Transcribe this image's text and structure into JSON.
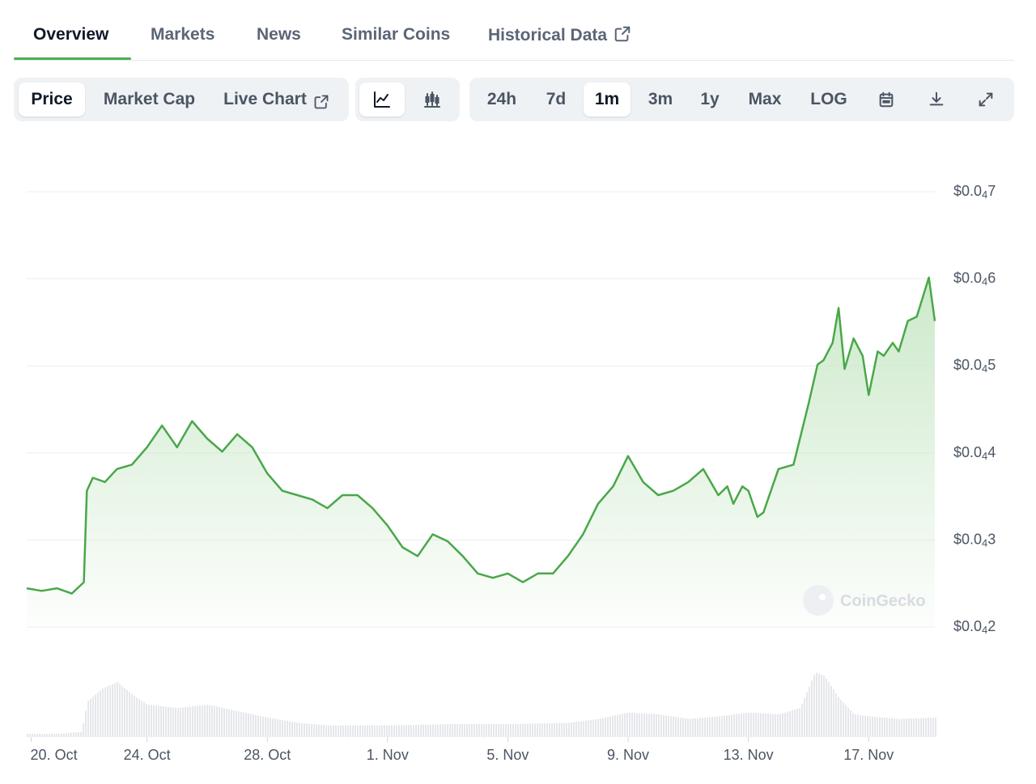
{
  "tabs": [
    {
      "label": "Overview",
      "active": true
    },
    {
      "label": "Markets"
    },
    {
      "label": "News"
    },
    {
      "label": "Similar Coins"
    },
    {
      "label": "Historical Data",
      "icon": "external-link-icon"
    }
  ],
  "toolbar": {
    "metric": [
      "Price",
      "Market Cap",
      "Live Chart"
    ],
    "metric_active": "Price",
    "chart_type_icons": [
      "line-chart-icon",
      "candlestick-chart-icon"
    ],
    "ranges": [
      "24h",
      "7d",
      "1m",
      "3m",
      "1y",
      "Max",
      "LOG"
    ],
    "range_active": "1m",
    "action_icons": [
      "calendar-icon",
      "download-icon",
      "fullscreen-icon"
    ]
  },
  "watermark": "CoinGecko",
  "colors": {
    "line": "#4aa74a",
    "area": "#c9e8c7",
    "volume": "#e5e7eb",
    "grid": "#eceef1",
    "accent": "#4cae4c"
  },
  "chart_data": {
    "type": "area",
    "x_ticks": [
      "20. Oct",
      "24. Oct",
      "28. Oct",
      "1. Nov",
      "5. Nov",
      "9. Nov",
      "13. Nov",
      "17. Nov"
    ],
    "y_ticks": [
      {
        "prefix": "$0.0",
        "sub": "4",
        "digit": "7",
        "value": 7
      },
      {
        "prefix": "$0.0",
        "sub": "4",
        "digit": "6",
        "value": 6
      },
      {
        "prefix": "$0.0",
        "sub": "4",
        "digit": "5",
        "value": 5
      },
      {
        "prefix": "$0.0",
        "sub": "4",
        "digit": "4",
        "value": 4
      },
      {
        "prefix": "$0.0",
        "sub": "4",
        "digit": "3",
        "value": 3
      },
      {
        "prefix": "$0.0",
        "sub": "4",
        "digit": "2",
        "value": 2
      }
    ],
    "y_unit_note": "price in units of $0.00001",
    "ylim": [
      2,
      7
    ],
    "x_range_days": [
      0,
      30.2
    ],
    "series": [
      {
        "x": [
          0,
          0.5,
          1,
          1.5,
          1.9,
          2,
          2.2,
          2.6,
          3,
          3.5,
          4,
          4.5,
          5,
          5.5,
          6,
          6.5,
          7,
          7.5,
          8,
          8.5,
          9,
          9.5,
          10,
          10.5,
          11,
          11.5,
          12,
          12.5,
          13,
          13.5,
          14,
          14.5,
          15,
          15.5,
          16,
          16.5,
          17,
          17.5,
          18,
          18.5,
          19,
          19.5,
          20,
          20.5,
          21,
          21.5,
          22,
          22.5,
          23,
          23.3,
          23.5,
          23.8,
          24,
          24.3,
          24.5,
          25,
          25.5,
          26,
          26.3,
          26.5,
          26.8,
          27,
          27.2,
          27.5,
          27.8,
          28,
          28.3,
          28.5,
          28.8,
          29,
          29.3,
          29.6,
          30,
          30.2
        ],
        "y": [
          2.38,
          2.35,
          2.38,
          2.32,
          2.45,
          3.5,
          3.65,
          3.6,
          3.75,
          3.8,
          4.0,
          4.25,
          4.0,
          4.3,
          4.1,
          3.95,
          4.15,
          4.0,
          3.7,
          3.5,
          3.45,
          3.4,
          3.3,
          3.45,
          3.45,
          3.3,
          3.1,
          2.85,
          2.75,
          3.0,
          2.92,
          2.75,
          2.55,
          2.5,
          2.55,
          2.45,
          2.55,
          2.55,
          2.75,
          3.0,
          3.35,
          3.55,
          3.9,
          3.6,
          3.45,
          3.5,
          3.6,
          3.75,
          3.45,
          3.55,
          3.35,
          3.55,
          3.5,
          3.2,
          3.25,
          3.75,
          3.8,
          4.5,
          4.95,
          5.0,
          5.2,
          5.6,
          4.9,
          5.25,
          5.05,
          4.6,
          5.1,
          5.05,
          5.2,
          5.1,
          5.45,
          5.5,
          5.95,
          5.45
        ]
      }
    ],
    "volume_note": "relative volume bars beneath price",
    "volume": {
      "x": [
        0,
        1,
        1.8,
        2,
        2.5,
        3,
        3.5,
        4,
        5,
        6,
        7,
        8,
        9,
        10,
        12,
        14,
        16,
        18,
        19,
        20,
        21,
        22,
        23,
        24,
        25,
        25.7,
        26.2,
        26.5,
        27,
        27.5,
        28,
        29,
        30.2
      ],
      "y": [
        0.05,
        0.05,
        0.08,
        0.55,
        0.75,
        0.85,
        0.65,
        0.5,
        0.45,
        0.5,
        0.4,
        0.3,
        0.22,
        0.18,
        0.18,
        0.2,
        0.2,
        0.22,
        0.28,
        0.38,
        0.35,
        0.28,
        0.32,
        0.38,
        0.35,
        0.45,
        1.0,
        0.95,
        0.6,
        0.35,
        0.32,
        0.28,
        0.3
      ]
    }
  }
}
